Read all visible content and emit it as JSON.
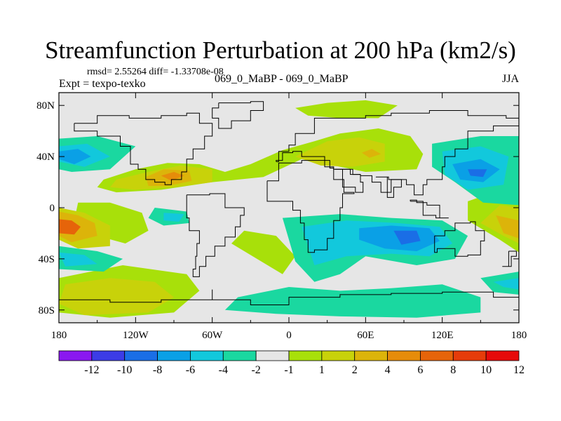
{
  "chart_data": {
    "type": "heatmap",
    "title": "Streamfunction Perturbation at 200 hPa (km2/s)",
    "stats_line": "rmsd= 2.55264 diff= -1.33708e-08",
    "left_subtitle": "Expt = texpo-texko",
    "center_subtitle": "069_0_MaBP - 069_0_MaBP",
    "right_subtitle": "JJA",
    "xaxis": {
      "range": [
        -180,
        180
      ],
      "ticks": [
        -180,
        -120,
        -60,
        0,
        60,
        120,
        180
      ],
      "tick_labels": [
        "180",
        "120W",
        "60W",
        "0",
        "60E",
        "120E",
        "180"
      ]
    },
    "yaxis": {
      "range": [
        -90,
        90
      ],
      "ticks": [
        -80,
        -40,
        0,
        40,
        80
      ],
      "tick_labels": [
        "80S",
        "40S",
        "0",
        "40N",
        "80N"
      ]
    },
    "colorbar": {
      "labels": [
        "-12",
        "-10",
        "-8",
        "-6",
        "-4",
        "-2",
        "-1",
        "1",
        "2",
        "4",
        "6",
        "8",
        "10",
        "12"
      ],
      "colors": [
        "#8a18f0",
        "#3c3ce6",
        "#1a6ee6",
        "#0aa0e6",
        "#12c8dc",
        "#1ad8a0",
        "#e6e6e6",
        "#a8e00a",
        "#c8d20a",
        "#dcb40a",
        "#e68c0a",
        "#e6640a",
        "#e63c0a",
        "#e60a0a"
      ]
    },
    "features": [
      {
        "name": "west-pacific-positive",
        "lon": -90,
        "lat": 25,
        "value": 7.5
      },
      {
        "name": "south-pacific-positive",
        "lon": -172,
        "lat": -15,
        "value": 9
      },
      {
        "name": "north-pacific-negative",
        "lon": -165,
        "lat": 40,
        "value": -5
      },
      {
        "name": "indian-ocean-negative",
        "lon": 93,
        "lat": -22,
        "value": -8
      },
      {
        "name": "asia-negative",
        "lon": 145,
        "lat": 28,
        "value": -7
      },
      {
        "name": "south-pacific-east-positive",
        "lon": 170,
        "lat": -15,
        "value": 7
      },
      {
        "name": "south-pacific-west-negative",
        "lon": -172,
        "lat": -40,
        "value": -3
      },
      {
        "name": "southern-ocean-positive",
        "lon": -135,
        "lat": -65,
        "value": 3
      },
      {
        "name": "north-atlantic-positive",
        "lon": 60,
        "lat": 45,
        "value": 4
      },
      {
        "name": "southern-ocean-negative",
        "lon": 40,
        "lat": -73,
        "value": -2
      }
    ]
  }
}
